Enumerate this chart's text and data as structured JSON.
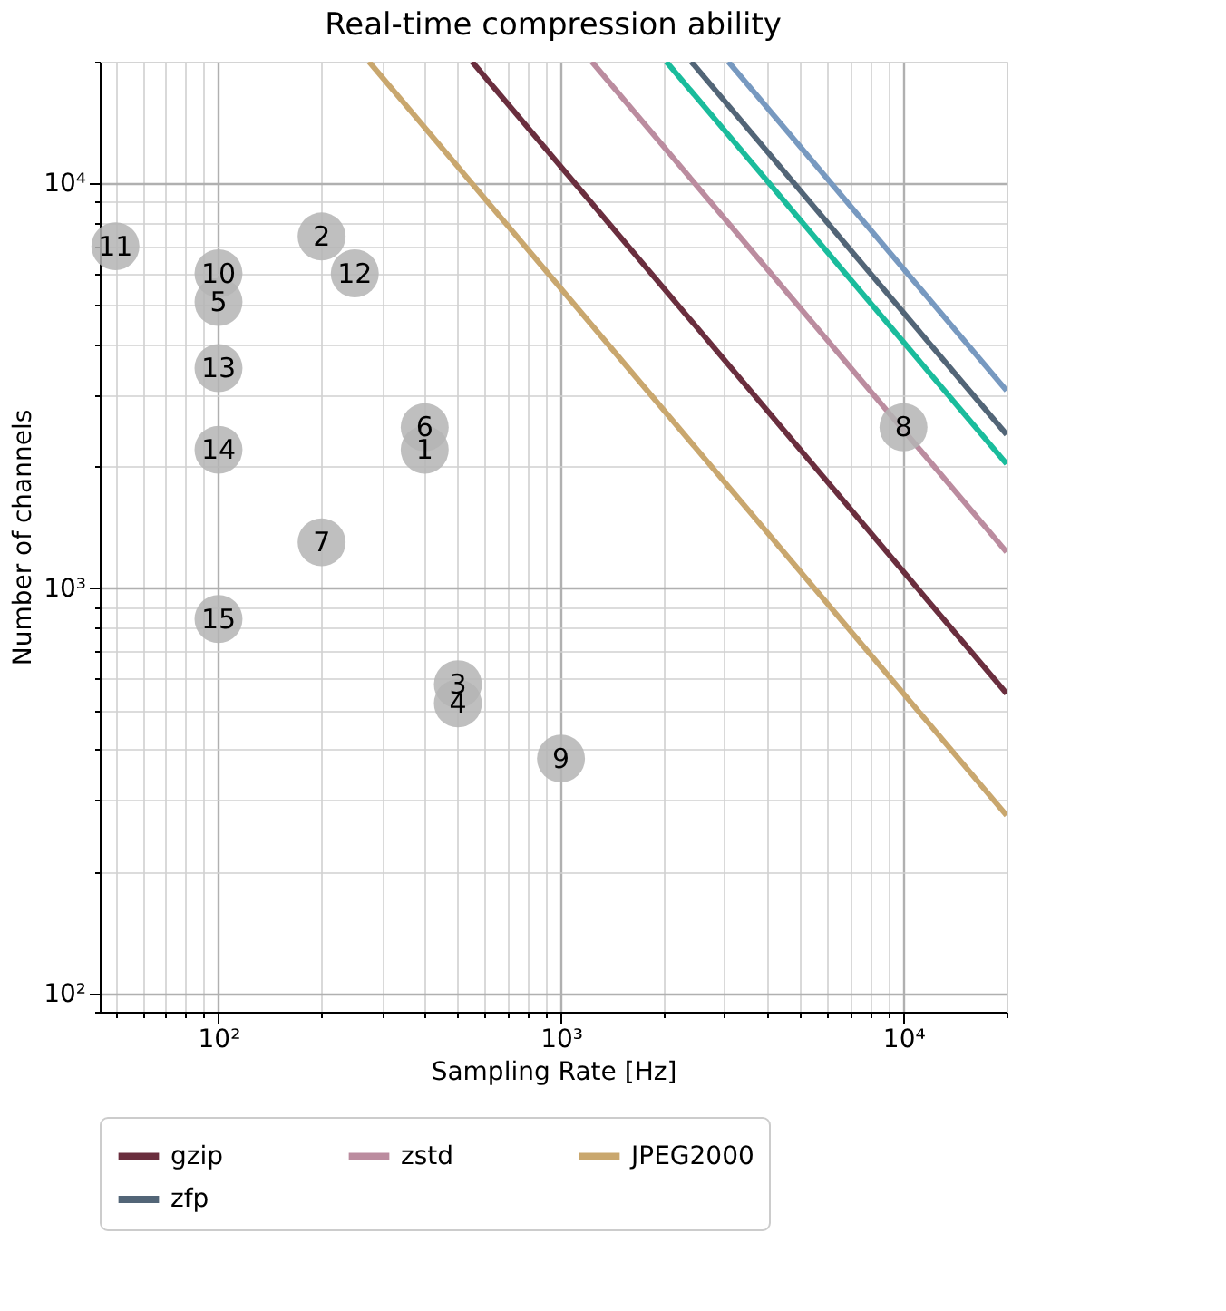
{
  "chart_data": {
    "type": "line",
    "title": "Real-time compression ability",
    "xlabel": "Sampling Rate [Hz]",
    "ylabel": "Number of channels",
    "log": "xy",
    "grid": true,
    "legend": "bottom",
    "xlim": [
      45,
      20000
    ],
    "ylim": [
      90,
      20000
    ],
    "xticks": [
      {
        "value": 50,
        "label": null
      },
      {
        "value": 60,
        "label": null
      },
      {
        "value": 70,
        "label": null
      },
      {
        "value": 80,
        "label": null
      },
      {
        "value": 90,
        "label": null
      },
      {
        "value": 100,
        "label": "10²"
      },
      {
        "value": 200,
        "label": null
      },
      {
        "value": 300,
        "label": null
      },
      {
        "value": 400,
        "label": null
      },
      {
        "value": 500,
        "label": null
      },
      {
        "value": 600,
        "label": null
      },
      {
        "value": 700,
        "label": null
      },
      {
        "value": 800,
        "label": null
      },
      {
        "value": 900,
        "label": null
      },
      {
        "value": 1000,
        "label": "10³"
      },
      {
        "value": 2000,
        "label": null
      },
      {
        "value": 3000,
        "label": null
      },
      {
        "value": 4000,
        "label": null
      },
      {
        "value": 5000,
        "label": null
      },
      {
        "value": 6000,
        "label": null
      },
      {
        "value": 7000,
        "label": null
      },
      {
        "value": 8000,
        "label": null
      },
      {
        "value": 9000,
        "label": null
      },
      {
        "value": 10000,
        "label": "10⁴"
      },
      {
        "value": 20000,
        "label": null
      }
    ],
    "yticks": [
      {
        "value": 90,
        "label": null
      },
      {
        "value": 100,
        "label": "10²"
      },
      {
        "value": 200,
        "label": null
      },
      {
        "value": 300,
        "label": null
      },
      {
        "value": 400,
        "label": null
      },
      {
        "value": 500,
        "label": null
      },
      {
        "value": 600,
        "label": null
      },
      {
        "value": 700,
        "label": null
      },
      {
        "value": 800,
        "label": null
      },
      {
        "value": 900,
        "label": null
      },
      {
        "value": 1000,
        "label": "10³"
      },
      {
        "value": 2000,
        "label": null
      },
      {
        "value": 3000,
        "label": null
      },
      {
        "value": 4000,
        "label": null
      },
      {
        "value": 5000,
        "label": null
      },
      {
        "value": 6000,
        "label": null
      },
      {
        "value": 7000,
        "label": null
      },
      {
        "value": 8000,
        "label": null
      },
      {
        "value": 9000,
        "label": null
      },
      {
        "value": 10000,
        "label": "10⁴"
      },
      {
        "value": 20000,
        "label": null
      }
    ],
    "series": [
      {
        "name": "gzip",
        "color": "#6a2e3e",
        "x": [
          550,
          20000
        ],
        "values": [
          20000,
          550
        ]
      },
      {
        "name": "zstd",
        "color": "#bb8c9f",
        "x": [
          1230,
          20000
        ],
        "values": [
          20000,
          1230
        ]
      },
      {
        "name": "JPEG2000",
        "color": "#c9a76e",
        "x": [
          275,
          20000
        ],
        "values": [
          20000,
          275
        ]
      },
      {
        "color": "#7799c0",
        "x": [
          3080,
          20000
        ],
        "values": [
          20000,
          3080
        ]
      },
      {
        "name": "zfp",
        "color": "#526577",
        "x": [
          2400,
          20000
        ],
        "values": [
          20000,
          2400
        ]
      },
      {
        "color": "#1abc9c",
        "x": [
          2030,
          20000
        ],
        "values": [
          20000,
          2030
        ]
      },
      {
        "type": "scatter",
        "marker": "circle",
        "color": "#b4b4b4",
        "x": [
          400,
          200,
          500,
          500,
          100,
          400,
          200,
          10000,
          1000,
          100,
          50,
          250,
          100,
          100,
          100
        ],
        "values": [
          2200,
          7400,
          580,
          520,
          5100,
          2500,
          1300,
          2500,
          380,
          6000,
          7000,
          6000,
          3500,
          2200,
          840
        ]
      }
    ],
    "annotations": [
      {
        "text": "1",
        "x": 400,
        "y": 2200
      },
      {
        "text": "2",
        "x": 200,
        "y": 7400
      },
      {
        "text": "3",
        "x": 500,
        "y": 580
      },
      {
        "text": "4",
        "x": 500,
        "y": 520
      },
      {
        "text": "5",
        "x": 100,
        "y": 5100
      },
      {
        "text": "6",
        "x": 400,
        "y": 2500
      },
      {
        "text": "7",
        "x": 200,
        "y": 1300
      },
      {
        "text": "8",
        "x": 10000,
        "y": 2500
      },
      {
        "text": "9",
        "x": 1000,
        "y": 380
      },
      {
        "text": "10",
        "x": 100,
        "y": 6000
      },
      {
        "text": "11",
        "x": 50,
        "y": 7000
      },
      {
        "text": "12",
        "x": 250,
        "y": 6000
      },
      {
        "text": "13",
        "x": 100,
        "y": 3500
      },
      {
        "text": "14",
        "x": 100,
        "y": 2200
      },
      {
        "text": "15",
        "x": 100,
        "y": 840
      }
    ]
  }
}
